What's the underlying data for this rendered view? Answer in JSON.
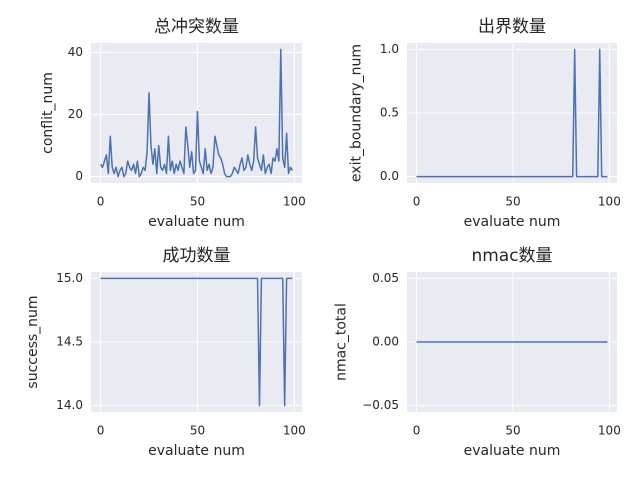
{
  "chart_data": [
    {
      "type": "line",
      "title": "总冲突数量",
      "x_label": "evaluate num",
      "y_label": "conflit_num",
      "color": "#4c72b0",
      "grid": true,
      "xlim": [
        -4.95,
        103.95
      ],
      "xticks": [
        0,
        50,
        100
      ],
      "ylim": [
        -2.05,
        43.05
      ],
      "yticks": [
        0,
        20,
        40
      ],
      "x": [
        0,
        1,
        2,
        3,
        4,
        5,
        6,
        7,
        8,
        9,
        10,
        11,
        12,
        13,
        14,
        15,
        16,
        17,
        18,
        19,
        20,
        21,
        22,
        23,
        24,
        25,
        26,
        27,
        28,
        29,
        30,
        31,
        32,
        33,
        34,
        35,
        36,
        37,
        38,
        39,
        40,
        41,
        42,
        43,
        44,
        45,
        46,
        47,
        48,
        49,
        50,
        51,
        52,
        53,
        54,
        55,
        56,
        57,
        58,
        59,
        60,
        61,
        62,
        63,
        64,
        65,
        66,
        67,
        68,
        69,
        70,
        71,
        72,
        73,
        74,
        75,
        76,
        77,
        78,
        79,
        80,
        81,
        82,
        83,
        84,
        85,
        86,
        87,
        88,
        89,
        90,
        91,
        92,
        93,
        94,
        95,
        96,
        97,
        98,
        99
      ],
      "values": [
        4,
        3,
        5,
        7,
        1,
        13,
        3,
        1,
        3,
        0,
        2,
        3,
        0,
        1,
        5,
        3,
        2,
        4,
        1,
        5,
        0,
        1,
        3,
        2,
        8,
        27,
        10,
        4,
        9,
        1,
        10,
        3,
        2,
        4,
        1,
        13,
        2,
        5,
        1,
        4,
        2,
        5,
        3,
        1,
        16,
        10,
        3,
        8,
        1,
        2,
        21,
        5,
        3,
        1,
        9,
        2,
        4,
        1,
        3,
        13,
        10,
        7,
        6,
        4,
        1,
        0,
        0,
        0,
        1,
        3,
        2,
        1,
        4,
        6,
        2,
        3,
        7,
        4,
        2,
        5,
        16,
        6,
        4,
        2,
        7,
        1,
        3,
        4,
        1,
        6,
        5,
        9,
        5,
        41,
        6,
        3,
        14,
        1,
        3,
        2
      ]
    },
    {
      "type": "line",
      "title": "出界数量",
      "x_label": "evaluate num",
      "y_label": "exit_boundary_num",
      "color": "#4c72b0",
      "grid": true,
      "xlim": [
        -4.95,
        103.95
      ],
      "xticks": [
        0,
        50,
        100
      ],
      "ylim": [
        -0.05,
        1.05
      ],
      "yticks": [
        {
          "value": 0,
          "label": "0.0"
        },
        {
          "value": 0.5,
          "label": "0.5"
        },
        {
          "value": 1,
          "label": "1.0"
        }
      ],
      "x": [
        0,
        1,
        2,
        3,
        4,
        5,
        6,
        7,
        8,
        9,
        10,
        11,
        12,
        13,
        14,
        15,
        16,
        17,
        18,
        19,
        20,
        21,
        22,
        23,
        24,
        25,
        26,
        27,
        28,
        29,
        30,
        31,
        32,
        33,
        34,
        35,
        36,
        37,
        38,
        39,
        40,
        41,
        42,
        43,
        44,
        45,
        46,
        47,
        48,
        49,
        50,
        51,
        52,
        53,
        54,
        55,
        56,
        57,
        58,
        59,
        60,
        61,
        62,
        63,
        64,
        65,
        66,
        67,
        68,
        69,
        70,
        71,
        72,
        73,
        74,
        75,
        76,
        77,
        78,
        79,
        80,
        81,
        82,
        83,
        84,
        85,
        86,
        87,
        88,
        89,
        90,
        91,
        92,
        93,
        94,
        95,
        96,
        97,
        98,
        99
      ],
      "values": [
        0,
        0,
        0,
        0,
        0,
        0,
        0,
        0,
        0,
        0,
        0,
        0,
        0,
        0,
        0,
        0,
        0,
        0,
        0,
        0,
        0,
        0,
        0,
        0,
        0,
        0,
        0,
        0,
        0,
        0,
        0,
        0,
        0,
        0,
        0,
        0,
        0,
        0,
        0,
        0,
        0,
        0,
        0,
        0,
        0,
        0,
        0,
        0,
        0,
        0,
        0,
        0,
        0,
        0,
        0,
        0,
        0,
        0,
        0,
        0,
        0,
        0,
        0,
        0,
        0,
        0,
        0,
        0,
        0,
        0,
        0,
        0,
        0,
        0,
        0,
        0,
        0,
        0,
        0,
        0,
        0,
        0,
        1,
        0,
        0,
        0,
        0,
        0,
        0,
        0,
        0,
        0,
        0,
        0,
        0,
        1,
        0,
        0,
        0,
        0
      ]
    },
    {
      "type": "line",
      "title": "成功数量",
      "x_label": "evaluate num",
      "y_label": "success_num",
      "color": "#4c72b0",
      "grid": true,
      "xlim": [
        -4.95,
        103.95
      ],
      "xticks": [
        0,
        50,
        100
      ],
      "ylim": [
        13.95,
        15.05
      ],
      "yticks": [
        {
          "value": 14,
          "label": "14.0"
        },
        14.5,
        {
          "value": 15,
          "label": "15.0"
        }
      ],
      "x": [
        0,
        1,
        2,
        3,
        4,
        5,
        6,
        7,
        8,
        9,
        10,
        11,
        12,
        13,
        14,
        15,
        16,
        17,
        18,
        19,
        20,
        21,
        22,
        23,
        24,
        25,
        26,
        27,
        28,
        29,
        30,
        31,
        32,
        33,
        34,
        35,
        36,
        37,
        38,
        39,
        40,
        41,
        42,
        43,
        44,
        45,
        46,
        47,
        48,
        49,
        50,
        51,
        52,
        53,
        54,
        55,
        56,
        57,
        58,
        59,
        60,
        61,
        62,
        63,
        64,
        65,
        66,
        67,
        68,
        69,
        70,
        71,
        72,
        73,
        74,
        75,
        76,
        77,
        78,
        79,
        80,
        81,
        82,
        83,
        84,
        85,
        86,
        87,
        88,
        89,
        90,
        91,
        92,
        93,
        94,
        95,
        96,
        97,
        98,
        99
      ],
      "values": [
        15,
        15,
        15,
        15,
        15,
        15,
        15,
        15,
        15,
        15,
        15,
        15,
        15,
        15,
        15,
        15,
        15,
        15,
        15,
        15,
        15,
        15,
        15,
        15,
        15,
        15,
        15,
        15,
        15,
        15,
        15,
        15,
        15,
        15,
        15,
        15,
        15,
        15,
        15,
        15,
        15,
        15,
        15,
        15,
        15,
        15,
        15,
        15,
        15,
        15,
        15,
        15,
        15,
        15,
        15,
        15,
        15,
        15,
        15,
        15,
        15,
        15,
        15,
        15,
        15,
        15,
        15,
        15,
        15,
        15,
        15,
        15,
        15,
        15,
        15,
        15,
        15,
        15,
        15,
        15,
        15,
        15,
        14,
        15,
        15,
        15,
        15,
        15,
        15,
        15,
        15,
        15,
        15,
        15,
        15,
        14,
        15,
        15,
        15,
        15
      ]
    },
    {
      "type": "line",
      "title": "nmac数量",
      "x_label": "evaluate num",
      "y_label": "nmac_total",
      "color": "#4c72b0",
      "grid": true,
      "xlim": [
        -4.95,
        103.95
      ],
      "xticks": [
        0,
        50,
        100
      ],
      "ylim": [
        -0.055,
        0.055
      ],
      "yticks": [
        {
          "value": -0.05,
          "label": "−0.05"
        },
        {
          "value": 0,
          "label": "0.00"
        },
        0.05
      ],
      "x": [
        0,
        1,
        2,
        3,
        4,
        5,
        6,
        7,
        8,
        9,
        10,
        11,
        12,
        13,
        14,
        15,
        16,
        17,
        18,
        19,
        20,
        21,
        22,
        23,
        24,
        25,
        26,
        27,
        28,
        29,
        30,
        31,
        32,
        33,
        34,
        35,
        36,
        37,
        38,
        39,
        40,
        41,
        42,
        43,
        44,
        45,
        46,
        47,
        48,
        49,
        50,
        51,
        52,
        53,
        54,
        55,
        56,
        57,
        58,
        59,
        60,
        61,
        62,
        63,
        64,
        65,
        66,
        67,
        68,
        69,
        70,
        71,
        72,
        73,
        74,
        75,
        76,
        77,
        78,
        79,
        80,
        81,
        82,
        83,
        84,
        85,
        86,
        87,
        88,
        89,
        90,
        91,
        92,
        93,
        94,
        95,
        96,
        97,
        98,
        99
      ],
      "values": [
        0,
        0,
        0,
        0,
        0,
        0,
        0,
        0,
        0,
        0,
        0,
        0,
        0,
        0,
        0,
        0,
        0,
        0,
        0,
        0,
        0,
        0,
        0,
        0,
        0,
        0,
        0,
        0,
        0,
        0,
        0,
        0,
        0,
        0,
        0,
        0,
        0,
        0,
        0,
        0,
        0,
        0,
        0,
        0,
        0,
        0,
        0,
        0,
        0,
        0,
        0,
        0,
        0,
        0,
        0,
        0,
        0,
        0,
        0,
        0,
        0,
        0,
        0,
        0,
        0,
        0,
        0,
        0,
        0,
        0,
        0,
        0,
        0,
        0,
        0,
        0,
        0,
        0,
        0,
        0,
        0,
        0,
        0,
        0,
        0,
        0,
        0,
        0,
        0,
        0,
        0,
        0,
        0,
        0,
        0,
        0,
        0,
        0,
        0,
        0
      ]
    }
  ]
}
